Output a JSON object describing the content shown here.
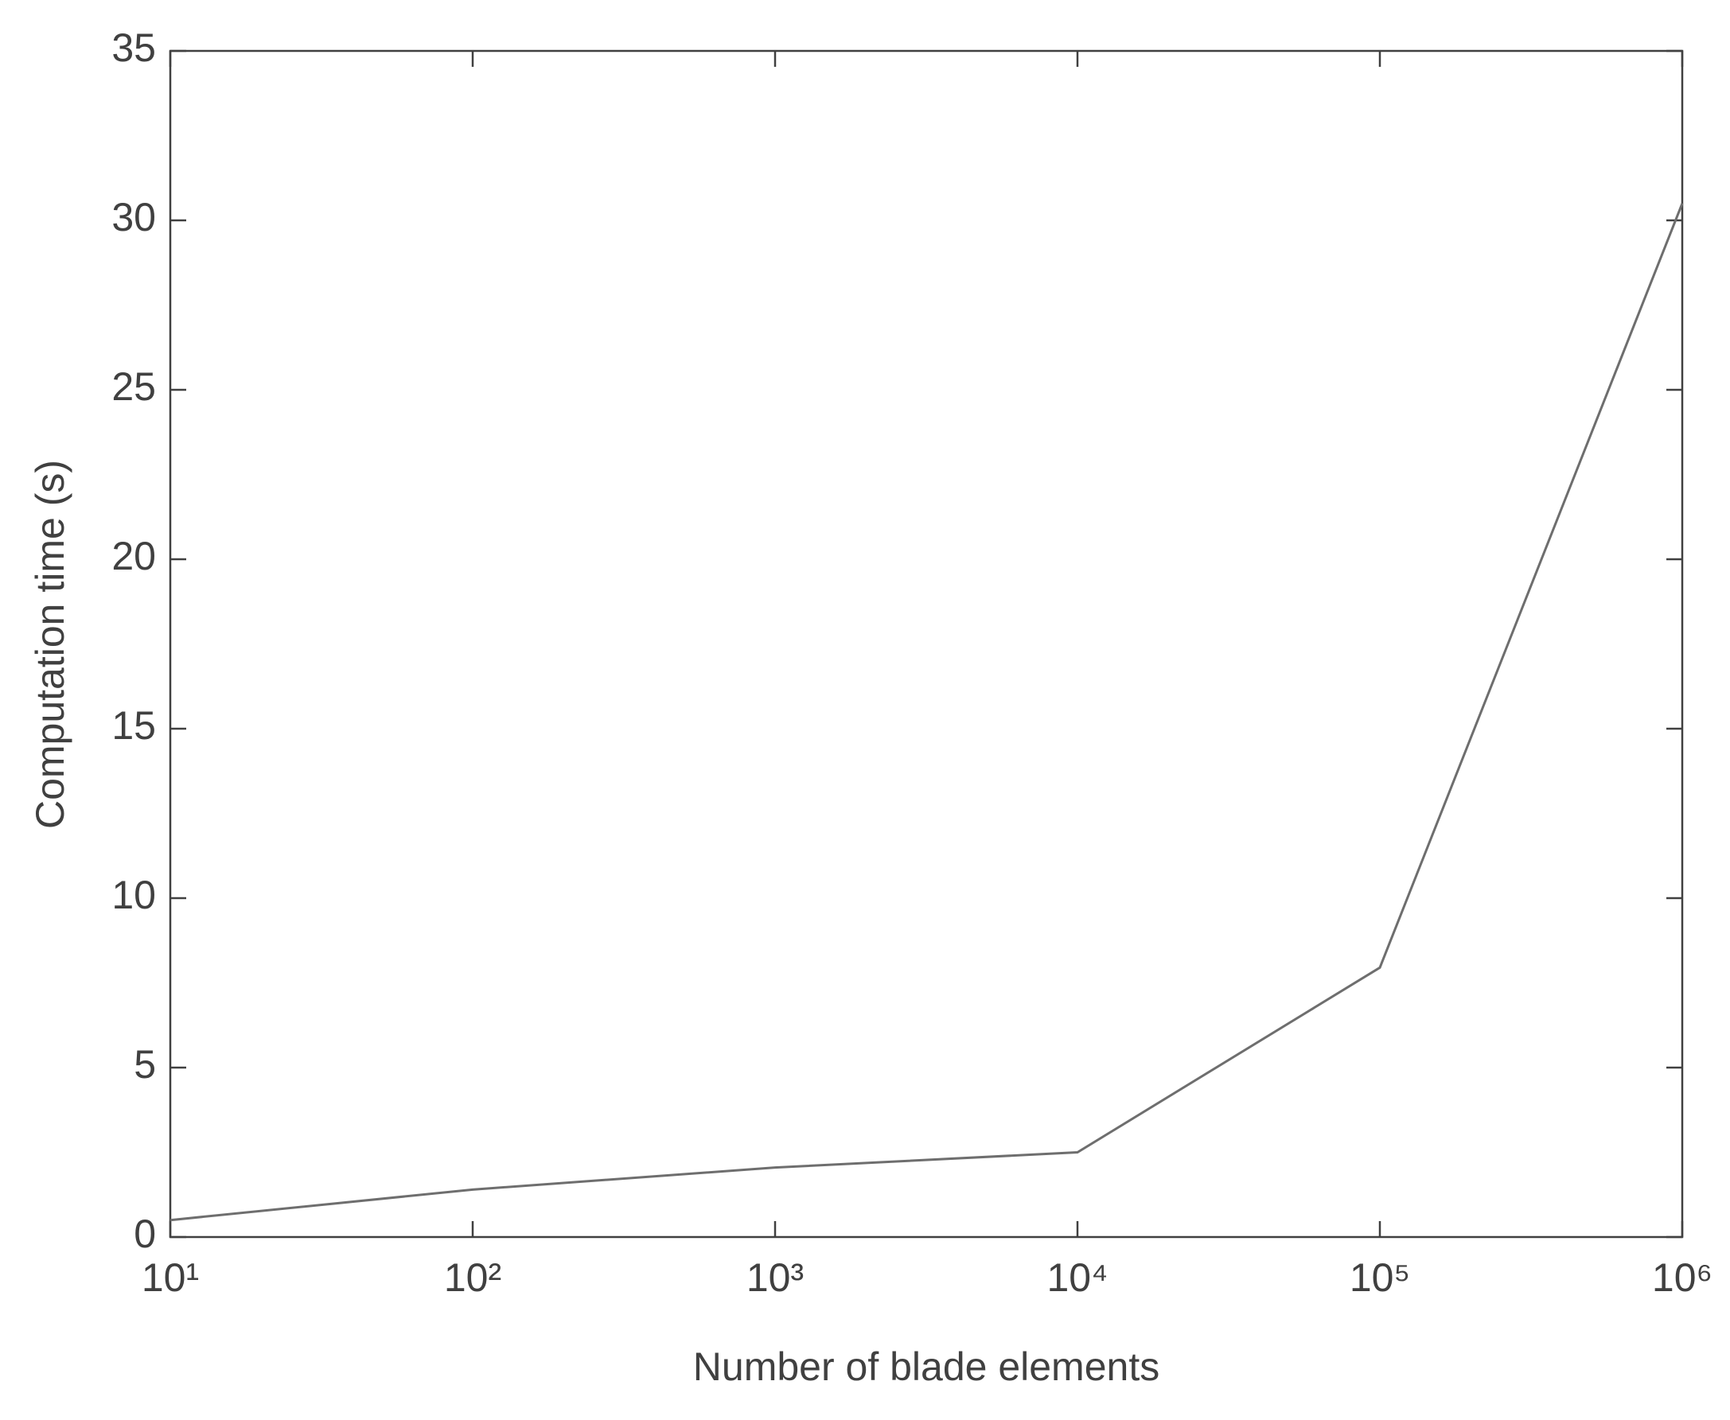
{
  "chart_data": {
    "type": "line",
    "xlabel": "Number of blade elements",
    "ylabel": "Computation time (s)",
    "xscale": "log",
    "x": [
      10,
      100,
      1000,
      10000,
      100000,
      1000000
    ],
    "series": [
      {
        "color": "#6e6e6e",
        "values": [
          0.5,
          1.4,
          2.05,
          2.5,
          7.95,
          30.5
        ]
      }
    ],
    "xlim": [
      10,
      1000000
    ],
    "xticks": [
      {
        "value": 10,
        "label": "10¹"
      },
      {
        "value": 100,
        "label": "10²"
      },
      {
        "value": 1000,
        "label": "10³"
      },
      {
        "value": 10000,
        "label": "10⁴"
      },
      {
        "value": 100000,
        "label": "10⁵"
      },
      {
        "value": 1000000,
        "label": "10⁶"
      }
    ],
    "ylim": [
      0,
      35
    ],
    "yticks": [
      0,
      5,
      10,
      15,
      20,
      25,
      30,
      35
    ],
    "grid": false
  }
}
